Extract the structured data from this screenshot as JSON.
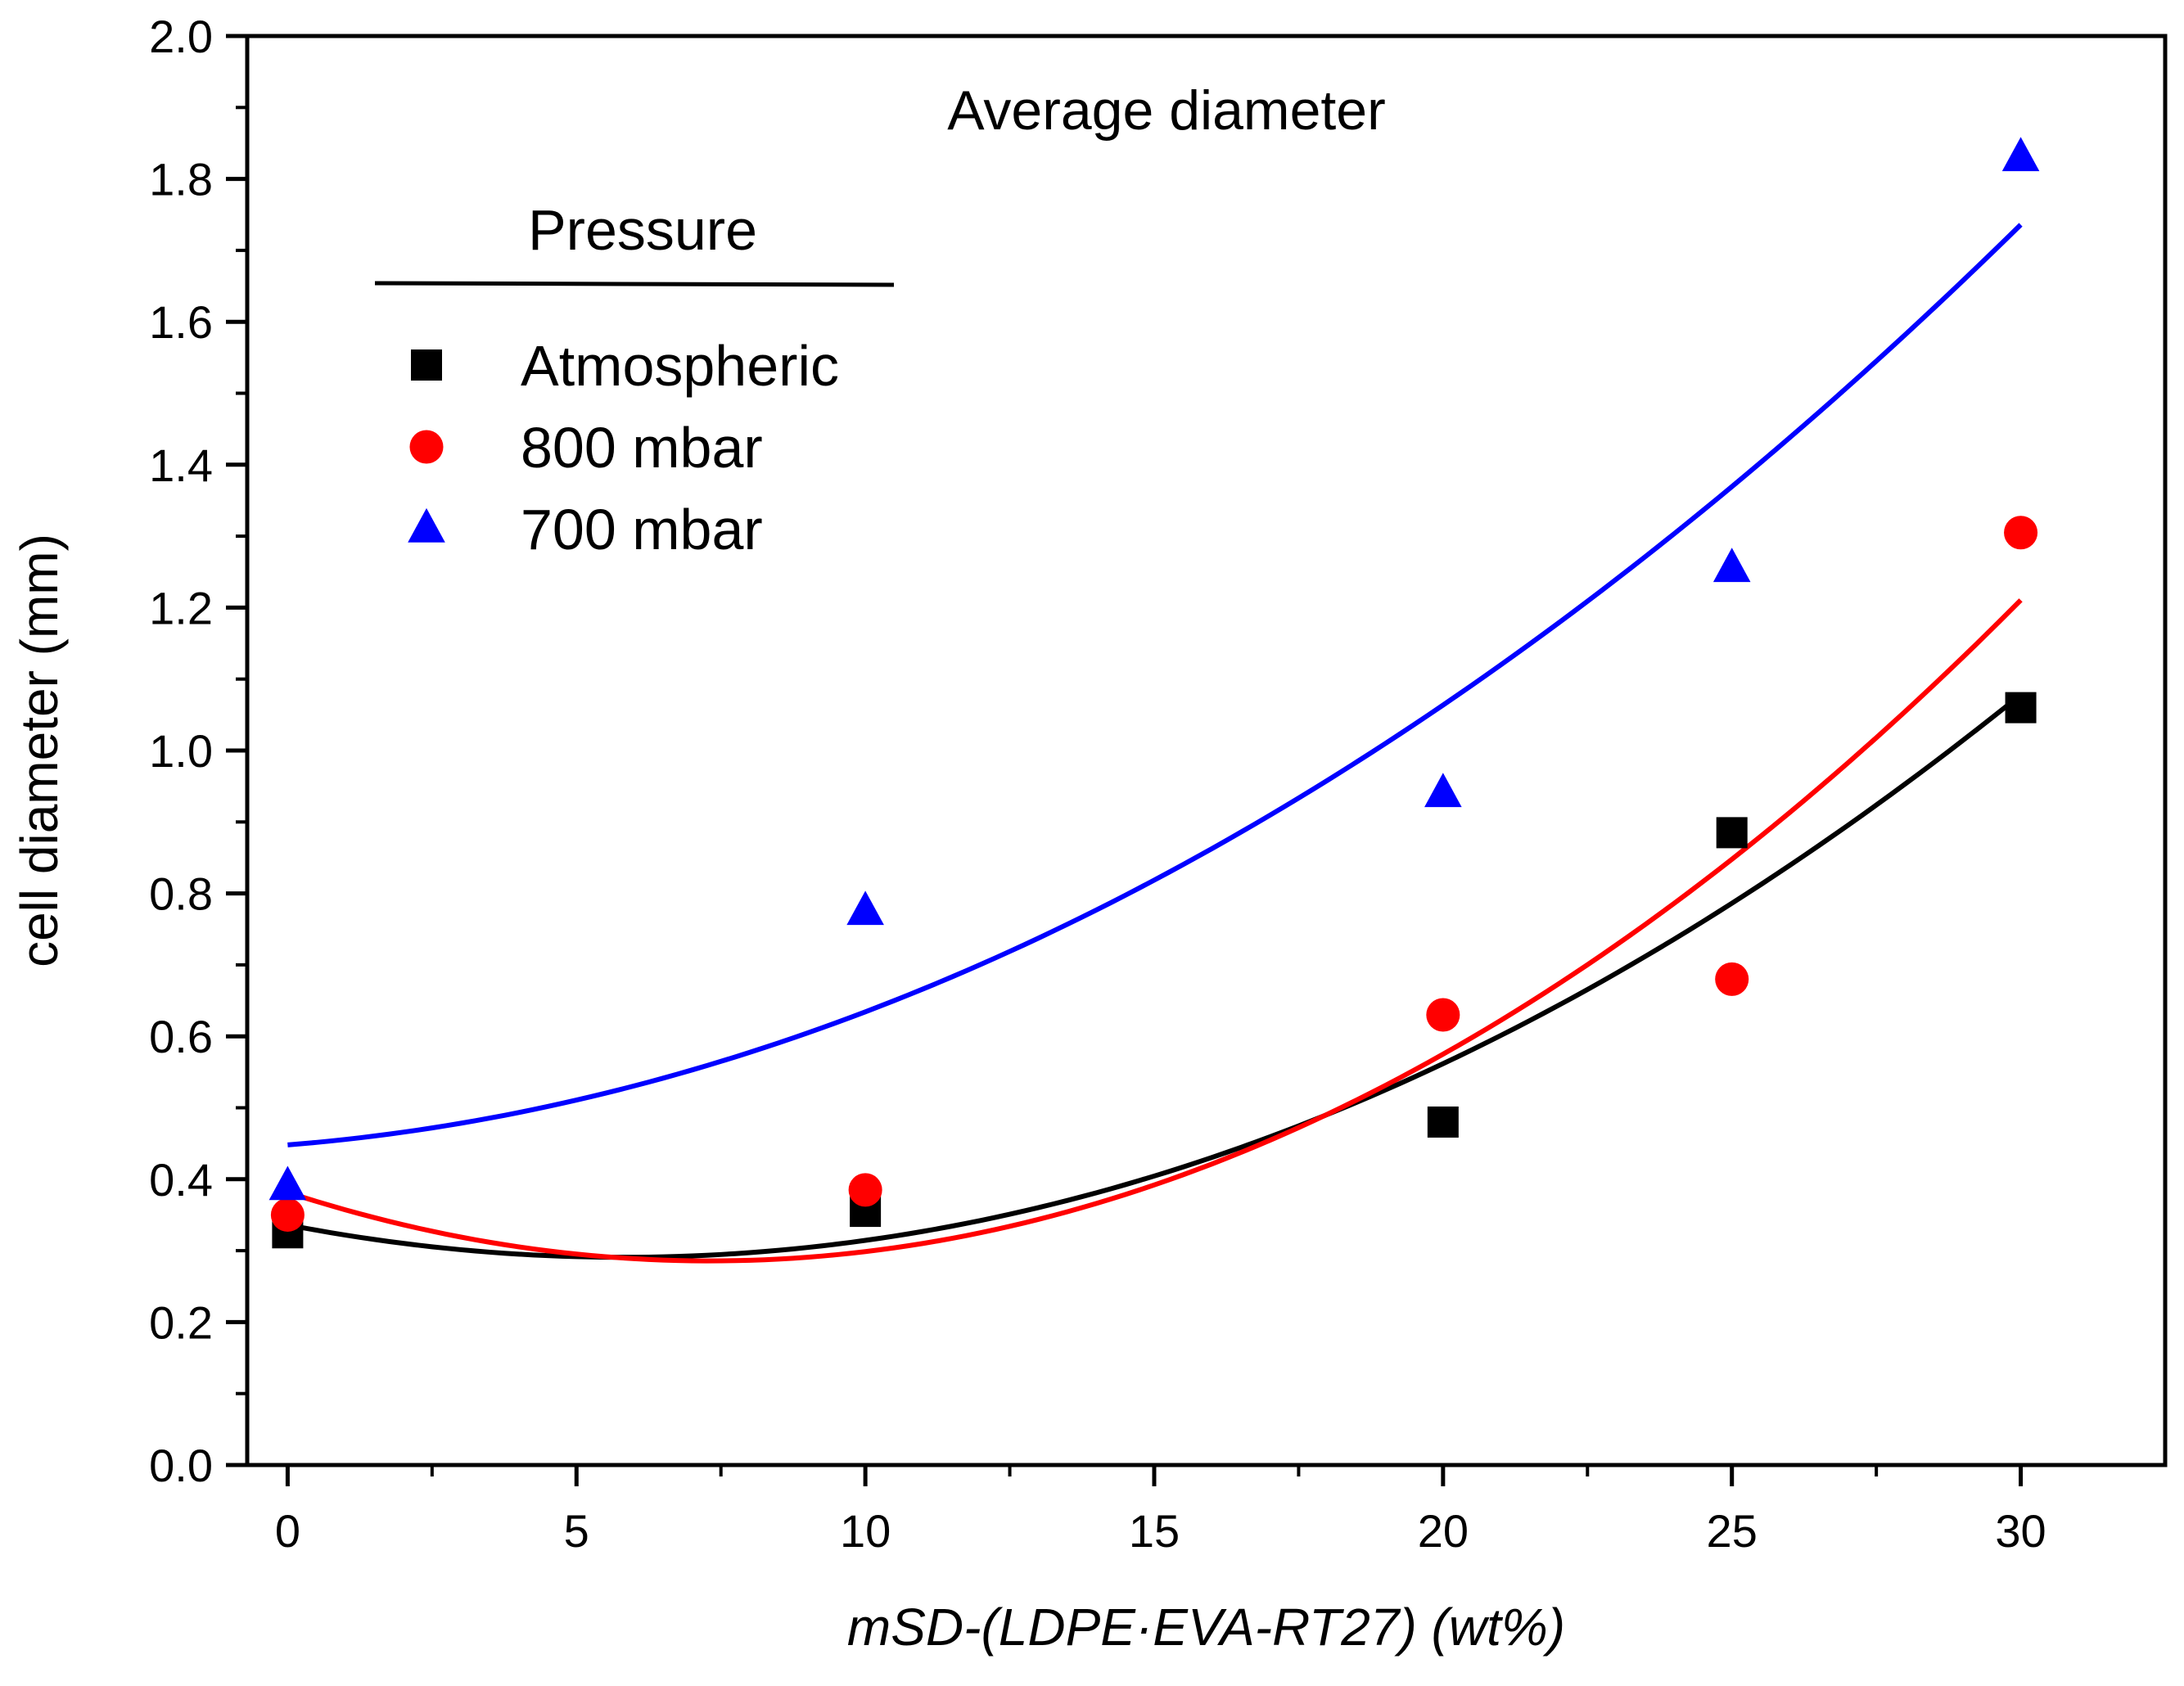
{
  "chart_data": {
    "type": "scatter",
    "title": "",
    "annotation": "Average diameter",
    "xlabel": "mSD-(LDPE·EVA-RT27) (wt%)",
    "ylabel": "cell diameter (mm)",
    "xlim": [
      -0.7,
      32.5
    ],
    "ylim": [
      0.0,
      2.0
    ],
    "xticks": [
      0,
      5,
      10,
      15,
      20,
      25,
      30
    ],
    "yticks": [
      0.0,
      0.2,
      0.4,
      0.6,
      0.8,
      1.0,
      1.2,
      1.4,
      1.6,
      1.8,
      2.0
    ],
    "xtick_labels": [
      "0",
      "5",
      "10",
      "15",
      "20",
      "25",
      "30"
    ],
    "ytick_labels": [
      "0.0",
      "0.2",
      "0.4",
      "0.6",
      "0.8",
      "1.0",
      "1.2",
      "1.4",
      "1.6",
      "1.8",
      "2.0"
    ],
    "grid": false,
    "legend": {
      "title": "Pressure",
      "placement": "upper-left"
    },
    "series": [
      {
        "name": "Atmospheric",
        "marker": "square",
        "color": "#000000",
        "x": [
          0,
          10,
          20,
          25,
          30
        ],
        "y": [
          0.325,
          0.355,
          0.48,
          0.885,
          1.06
        ],
        "fit": {
          "type": "quadratic",
          "coefficients": [
            0.3361,
            -0.01562,
            0.001345
          ]
        }
      },
      {
        "name": "800 mbar",
        "marker": "circle",
        "color": "#ff0000",
        "x": [
          0,
          10,
          20,
          25,
          30
        ],
        "y": [
          0.35,
          0.385,
          0.63,
          0.68,
          1.305
        ],
        "fit": {
          "type": "quadratic",
          "coefficients": [
            0.3816,
            -0.02625,
            0.001796
          ]
        }
      },
      {
        "name": "700 mbar",
        "marker": "triangle",
        "color": "#0000ff",
        "x": [
          0,
          10,
          20,
          25,
          30
        ],
        "y": [
          0.39,
          0.775,
          0.94,
          1.255,
          1.83
        ],
        "fit": {
          "type": "quadratic",
          "coefficients": [
            0.448,
            0.00648,
            0.001215
          ]
        }
      }
    ]
  }
}
